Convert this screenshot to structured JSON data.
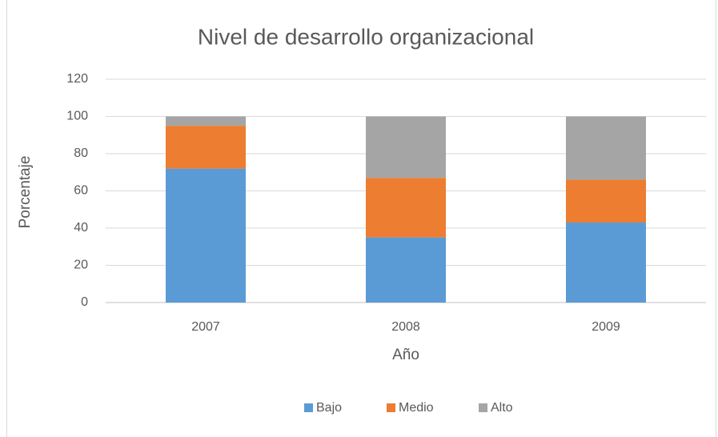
{
  "chart_data": {
    "type": "stacked_bar",
    "title": "Nivel de desarrollo organizacional",
    "x_label": "Año",
    "y_label": "Porcentaje",
    "categories": [
      "2007",
      "2008",
      "2009"
    ],
    "series": [
      {
        "name": "Bajo",
        "color": "#5b9bd5",
        "values": [
          72,
          35,
          43
        ]
      },
      {
        "name": "Medio",
        "color": "#ed7d31",
        "values": [
          23,
          32,
          23
        ]
      },
      {
        "name": "Alto",
        "color": "#a5a5a5",
        "values": [
          5,
          33,
          34
        ]
      }
    ],
    "ylim": [
      0,
      120
    ],
    "yticks": [
      0,
      20,
      40,
      60,
      80,
      100,
      120
    ],
    "grid": true,
    "legend": "bottom"
  }
}
